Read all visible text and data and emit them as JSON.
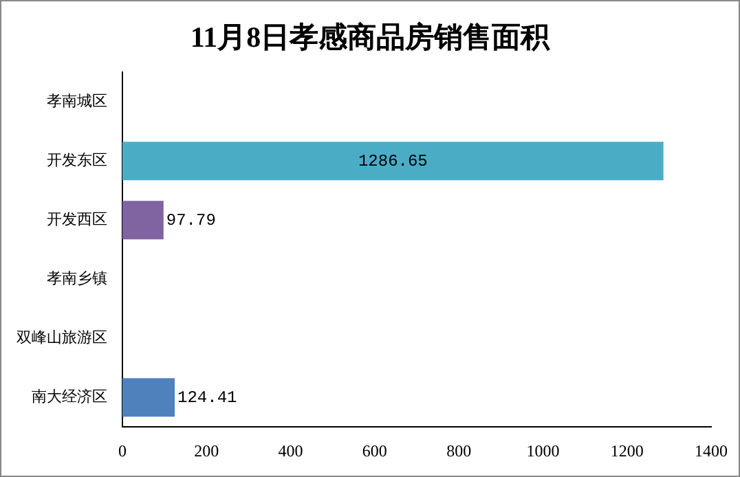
{
  "chart_data": {
    "type": "bar",
    "orientation": "horizontal",
    "title": "11月8日孝感商品房销售面积",
    "categories": [
      "孝南城区",
      "开发东区",
      "开发西区",
      "孝南乡镇",
      "双峰山旅游区",
      "南大经济区"
    ],
    "values": [
      null,
      1286.65,
      97.79,
      null,
      null,
      124.41
    ],
    "colors": [
      "#4bacc6",
      "#4bacc6",
      "#8064a2",
      "#4bacc6",
      "#4bacc6",
      "#4f81bd"
    ],
    "xlim": [
      0,
      1400
    ],
    "xticks": [
      0,
      200,
      400,
      600,
      800,
      1000,
      1200,
      1400
    ],
    "grid": false,
    "legend": false,
    "data_labels": true
  }
}
